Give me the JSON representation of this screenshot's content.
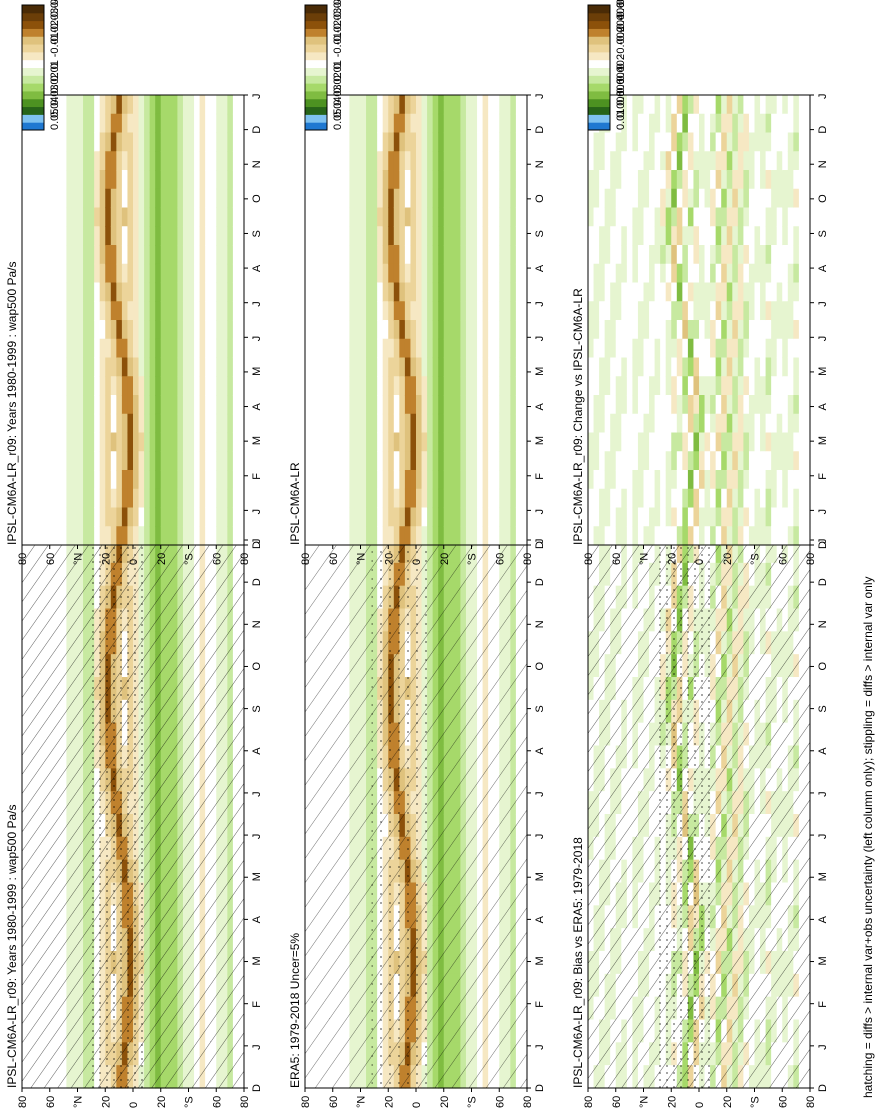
{
  "caption": "hatching = diffs > internal var+obs uncertainty (left column only); stippling = diffs > internal var only",
  "colors": {
    "main": [
      "#1f78d1",
      "#7fc2f0",
      "#276419",
      "#4d9221",
      "#7fbc41",
      "#a6d96a",
      "#c7e9a0",
      "#e6f5d0",
      "#ffffff",
      "#f6e8c3",
      "#ecd49a",
      "#dfc27d",
      "#bf812d",
      "#8c510a",
      "#6b3e08",
      "#4a2b06"
    ],
    "zero": "#ffffff"
  },
  "month_labels": [
    "D",
    "J",
    "F",
    "M",
    "A",
    "M",
    "J",
    "J",
    "A",
    "S",
    "O",
    "N",
    "D",
    "J"
  ],
  "lat_labels": [
    "80",
    "60",
    "°N",
    "20",
    "0",
    "20",
    "°S",
    "60",
    "80"
  ],
  "scales": {
    "main": [
      "0.05",
      "0.04",
      "0.03",
      "0.02",
      "0.01",
      "0",
      "-0.01",
      "-0.02",
      "-0.03",
      "-0.04",
      "-0.05"
    ],
    "diff": [
      "0.01",
      "0.008",
      "0.006",
      "0.004",
      "0.002",
      "0",
      "-0.002",
      "-0.004",
      "-0.006",
      "-0.008",
      "-0.01"
    ]
  },
  "panels": [
    {
      "id": "model-left",
      "title": "IPSL-CM6A-LR_r09: Years 1980-1999 : wap500 Pa/s",
      "scale": "main",
      "hatch": "heavy",
      "stipple": "dense",
      "diff": false
    },
    {
      "id": "obs",
      "title": "ERA5: 1979-2018 Uncer=5%",
      "scale": "main",
      "hatch": "medium",
      "stipple": "medium",
      "diff": false
    },
    {
      "id": "bias",
      "title": "IPSL-CM6A-LR_r09: Bias vs ERA5: 1979-2018",
      "scale": "diff",
      "hatch": "heavy",
      "stipple": "dense",
      "diff": true
    },
    {
      "id": "model-right",
      "title": "IPSL-CM6A-LR_r09: Years 1980-1999 : wap500 Pa/s",
      "scale": "main",
      "hatch": "none",
      "stipple": "sparse",
      "diff": false
    },
    {
      "id": "ref-right",
      "title": "IPSL-CM6A-LR",
      "scale": "main",
      "hatch": "none",
      "stipple": "sparse",
      "diff": false
    },
    {
      "id": "change",
      "title": "IPSL-CM6A-LR_r09: Change vs IPSL-CM6A-LR",
      "scale": "diff",
      "hatch": "none",
      "stipple": "sparse",
      "diff": true
    }
  ],
  "chart_data": {
    "type": "heatmap",
    "variable": "wap500",
    "units": "Pa/s",
    "x": "latitude (80N to 80S)",
    "y": "month (D to J, seasonal cycle)",
    "layout": "2 columns x 3 rows, rotated 90 degrees",
    "zonal_bands": [
      {
        "lat": 80,
        "value": 0.0
      },
      {
        "lat": 60,
        "value": -0.008
      },
      {
        "lat": 45,
        "value": 0.004
      },
      {
        "lat": 30,
        "value": 0.01
      },
      {
        "lat": 10,
        "value": -0.04
      },
      {
        "lat": -15,
        "value": 0.025
      },
      {
        "lat": -30,
        "value": 0.02
      },
      {
        "lat": -50,
        "value": -0.012
      },
      {
        "lat": -70,
        "value": 0.012
      }
    ]
  }
}
